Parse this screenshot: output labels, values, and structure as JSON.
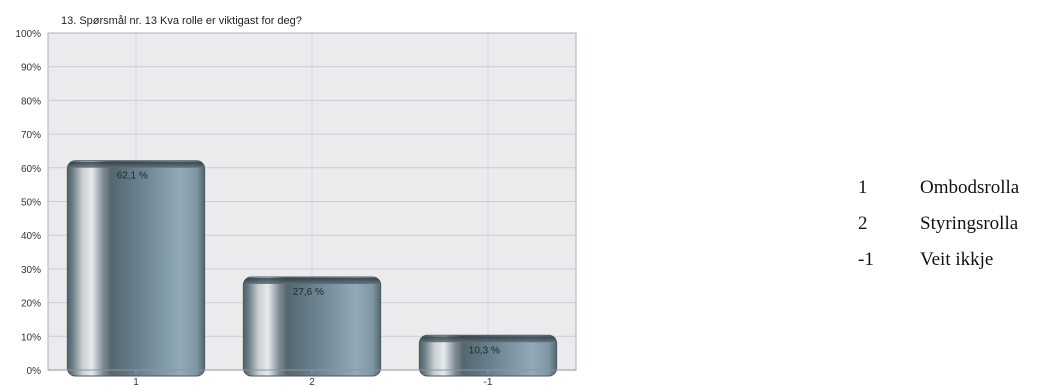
{
  "chart_data": {
    "type": "bar",
    "title": "13. Spørsmål nr. 13 Kva rolle er viktigast for deg?",
    "categories": [
      "1",
      "2",
      "-1"
    ],
    "values": [
      62.1,
      27.6,
      10.3
    ],
    "value_labels": [
      "62,1 %",
      "27,6 %",
      "10,3 %"
    ],
    "xlabel": "",
    "ylabel": "",
    "ylim": [
      0,
      100
    ],
    "yticks": [
      "0%",
      "10%",
      "20%",
      "30%",
      "40%",
      "50%",
      "60%",
      "70%",
      "80%",
      "90%",
      "100%"
    ],
    "grid": true,
    "legend": "right"
  },
  "legend": {
    "items": [
      {
        "key": "1",
        "label": "Ombodsrolla"
      },
      {
        "key": "2",
        "label": "Styringsrolla"
      },
      {
        "key": "-1",
        "label": "Veit ikkje"
      }
    ]
  }
}
